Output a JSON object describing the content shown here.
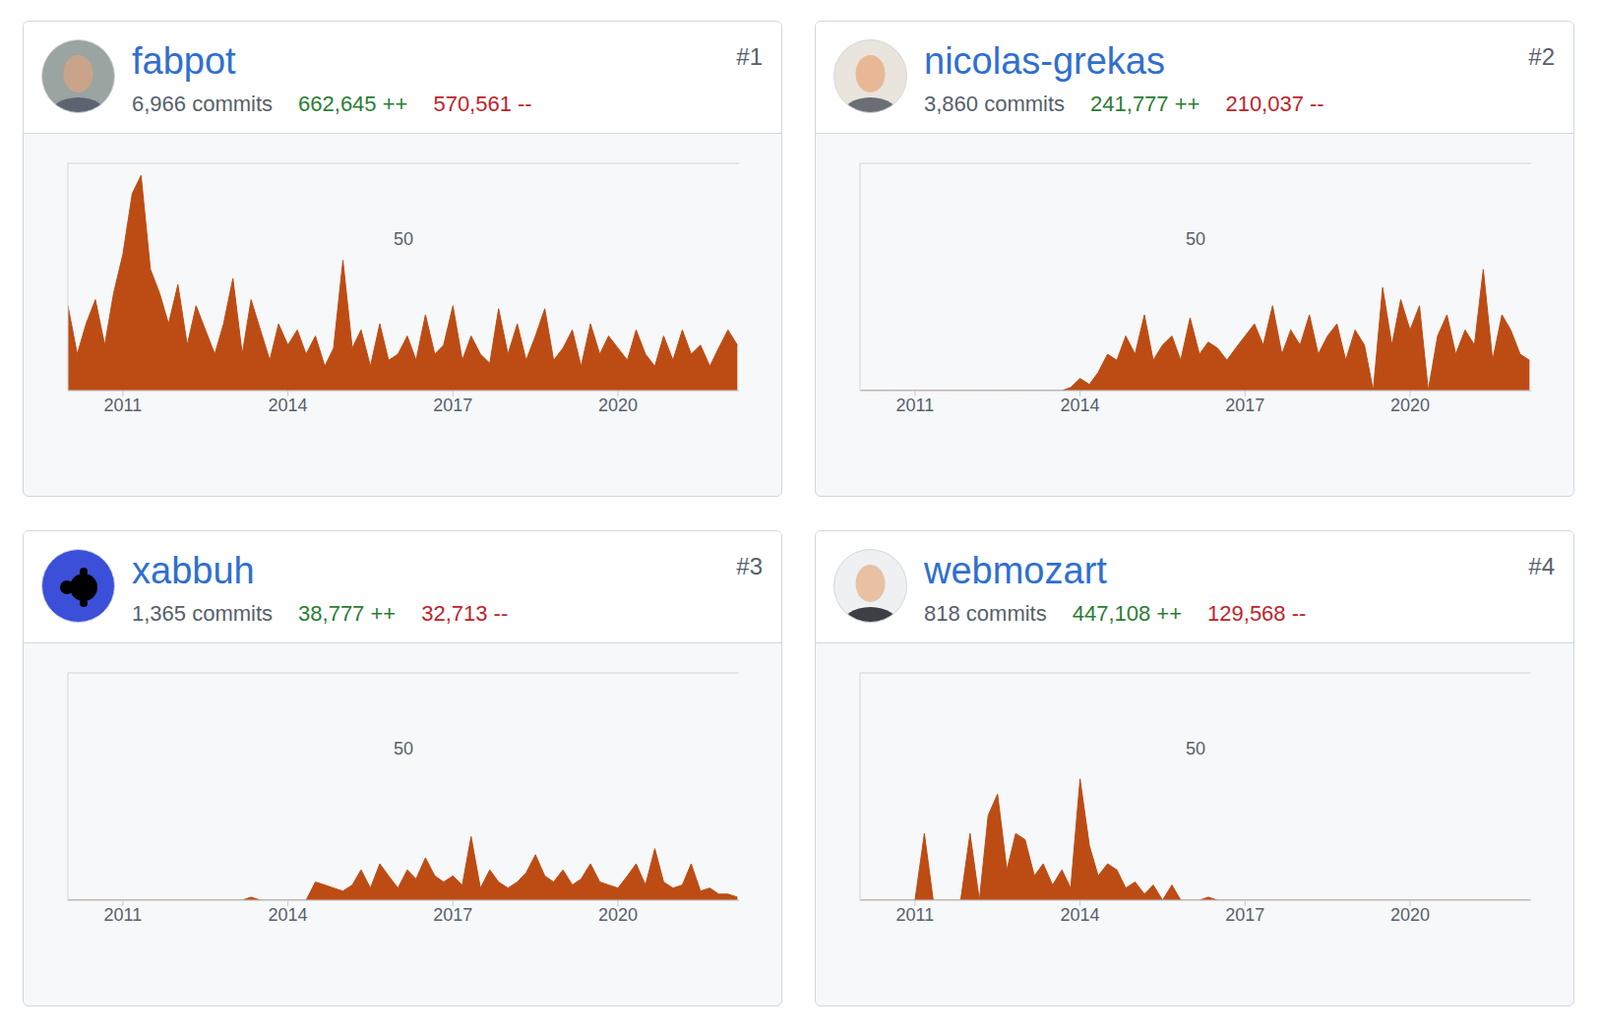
{
  "chart_data": [
    {
      "type": "area",
      "title": "fabpot",
      "rank": "#1",
      "commits": "6,966 commits",
      "additions": "662,645 ++",
      "deletions": "570,561 --",
      "color": "#bc4c14",
      "grid": true,
      "xlim": [
        2010,
        2022.2
      ],
      "xticks": [
        2011,
        2014,
        2017,
        2020
      ],
      "ylim": [
        0,
        75
      ],
      "yticks": [
        50
      ],
      "x": [
        2010,
        2010.17,
        2010.33,
        2010.5,
        2010.67,
        2010.83,
        2011,
        2011.17,
        2011.33,
        2011.5,
        2011.67,
        2011.83,
        2012,
        2012.17,
        2012.33,
        2012.5,
        2012.67,
        2012.83,
        2013,
        2013.17,
        2013.33,
        2013.5,
        2013.67,
        2013.83,
        2014,
        2014.17,
        2014.33,
        2014.5,
        2014.67,
        2014.83,
        2015,
        2015.17,
        2015.33,
        2015.5,
        2015.67,
        2015.83,
        2016,
        2016.17,
        2016.33,
        2016.5,
        2016.67,
        2016.83,
        2017,
        2017.17,
        2017.33,
        2017.5,
        2017.67,
        2017.83,
        2018,
        2018.17,
        2018.33,
        2018.5,
        2018.67,
        2018.83,
        2019,
        2019.17,
        2019.33,
        2019.5,
        2019.67,
        2019.83,
        2020,
        2020.17,
        2020.33,
        2020.5,
        2020.67,
        2020.83,
        2021,
        2021.17,
        2021.33,
        2021.5,
        2021.67,
        2021.83,
        2022,
        2022.17
      ],
      "values": [
        28,
        12,
        22,
        30,
        15,
        32,
        45,
        65,
        71,
        40,
        32,
        22,
        35,
        15,
        28,
        20,
        12,
        22,
        37,
        12,
        30,
        20,
        10,
        22,
        15,
        20,
        12,
        18,
        8,
        14,
        43,
        14,
        20,
        8,
        22,
        10,
        12,
        18,
        10,
        25,
        12,
        15,
        28,
        10,
        18,
        12,
        9,
        27,
        12,
        22,
        10,
        18,
        27,
        10,
        14,
        20,
        8,
        22,
        12,
        18,
        14,
        10,
        20,
        12,
        8,
        18,
        10,
        20,
        12,
        15,
        8,
        14,
        20,
        15
      ]
    },
    {
      "type": "area",
      "title": "nicolas-grekas",
      "rank": "#2",
      "commits": "3,860 commits",
      "additions": "241,777 ++",
      "deletions": "210,037 --",
      "color": "#bc4c14",
      "grid": true,
      "xlim": [
        2010,
        2022.2
      ],
      "xticks": [
        2011,
        2014,
        2017,
        2020
      ],
      "ylim": [
        0,
        75
      ],
      "yticks": [
        50
      ],
      "x": [
        2010,
        2010.17,
        2010.33,
        2010.5,
        2010.67,
        2010.83,
        2011,
        2011.17,
        2011.33,
        2011.5,
        2011.67,
        2011.83,
        2012,
        2012.17,
        2012.33,
        2012.5,
        2012.67,
        2012.83,
        2013,
        2013.17,
        2013.33,
        2013.5,
        2013.67,
        2013.83,
        2014,
        2014.17,
        2014.33,
        2014.5,
        2014.67,
        2014.83,
        2015,
        2015.17,
        2015.33,
        2015.5,
        2015.67,
        2015.83,
        2016,
        2016.17,
        2016.33,
        2016.5,
        2016.67,
        2016.83,
        2017,
        2017.17,
        2017.33,
        2017.5,
        2017.67,
        2017.83,
        2018,
        2018.17,
        2018.33,
        2018.5,
        2018.67,
        2018.83,
        2019,
        2019.17,
        2019.33,
        2019.5,
        2019.67,
        2019.83,
        2020,
        2020.17,
        2020.33,
        2020.5,
        2020.67,
        2020.83,
        2021,
        2021.17,
        2021.33,
        2021.5,
        2021.67,
        2021.83,
        2022,
        2022.17
      ],
      "values": [
        0,
        0,
        0,
        0,
        0,
        0,
        0,
        0,
        0,
        0,
        0,
        0,
        0,
        0,
        0,
        0,
        0,
        0,
        0,
        0,
        0,
        0,
        0,
        1,
        4,
        2,
        6,
        12,
        10,
        18,
        12,
        25,
        10,
        15,
        18,
        10,
        24,
        12,
        16,
        14,
        10,
        14,
        18,
        22,
        15,
        28,
        12,
        20,
        15,
        25,
        12,
        18,
        22,
        10,
        20,
        15,
        0,
        34,
        15,
        30,
        20,
        28,
        0,
        18,
        25,
        12,
        20,
        15,
        40,
        10,
        25,
        20,
        12,
        10
      ]
    },
    {
      "type": "area",
      "title": "xabbuh",
      "rank": "#3",
      "commits": "1,365 commits",
      "additions": "38,777 ++",
      "deletions": "32,713 --",
      "color": "#bc4c14",
      "grid": true,
      "xlim": [
        2010,
        2022.2
      ],
      "xticks": [
        2011,
        2014,
        2017,
        2020
      ],
      "ylim": [
        0,
        75
      ],
      "yticks": [
        50
      ],
      "x": [
        2010,
        2010.17,
        2010.33,
        2010.5,
        2010.67,
        2010.83,
        2011,
        2011.17,
        2011.33,
        2011.5,
        2011.67,
        2011.83,
        2012,
        2012.17,
        2012.33,
        2012.5,
        2012.67,
        2012.83,
        2013,
        2013.17,
        2013.33,
        2013.5,
        2013.67,
        2013.83,
        2014,
        2014.17,
        2014.33,
        2014.5,
        2014.67,
        2014.83,
        2015,
        2015.17,
        2015.33,
        2015.5,
        2015.67,
        2015.83,
        2016,
        2016.17,
        2016.33,
        2016.5,
        2016.67,
        2016.83,
        2017,
        2017.17,
        2017.33,
        2017.5,
        2017.67,
        2017.83,
        2018,
        2018.17,
        2018.33,
        2018.5,
        2018.67,
        2018.83,
        2019,
        2019.17,
        2019.33,
        2019.5,
        2019.67,
        2019.83,
        2020,
        2020.17,
        2020.33,
        2020.5,
        2020.67,
        2020.83,
        2021,
        2021.17,
        2021.33,
        2021.5,
        2021.67,
        2021.83,
        2022,
        2022.17
      ],
      "values": [
        0,
        0,
        0,
        0,
        0,
        0,
        0,
        0,
        0,
        0,
        0,
        0,
        0,
        0,
        0,
        0,
        0,
        0,
        0,
        0,
        1,
        0,
        0,
        0,
        0,
        0,
        0,
        6,
        5,
        4,
        3,
        5,
        10,
        4,
        12,
        8,
        4,
        10,
        7,
        14,
        8,
        6,
        8,
        5,
        21,
        4,
        10,
        6,
        4,
        6,
        9,
        15,
        8,
        6,
        10,
        5,
        7,
        12,
        6,
        5,
        4,
        8,
        12,
        5,
        17,
        6,
        4,
        5,
        12,
        3,
        4,
        2,
        2,
        1
      ]
    },
    {
      "type": "area",
      "title": "webmozart",
      "rank": "#4",
      "commits": "818 commits",
      "additions": "447,108 ++",
      "deletions": "129,568 --",
      "color": "#bc4c14",
      "grid": true,
      "xlim": [
        2010,
        2022.2
      ],
      "xticks": [
        2011,
        2014,
        2017,
        2020
      ],
      "ylim": [
        0,
        75
      ],
      "yticks": [
        50
      ],
      "x": [
        2010,
        2010.17,
        2010.33,
        2010.5,
        2010.67,
        2010.83,
        2011,
        2011.17,
        2011.33,
        2011.5,
        2011.67,
        2011.83,
        2012,
        2012.17,
        2012.33,
        2012.5,
        2012.67,
        2012.83,
        2013,
        2013.17,
        2013.33,
        2013.5,
        2013.67,
        2013.83,
        2014,
        2014.17,
        2014.33,
        2014.5,
        2014.67,
        2014.83,
        2015,
        2015.17,
        2015.33,
        2015.5,
        2015.67,
        2015.83,
        2016,
        2016.17,
        2016.33,
        2016.5,
        2016.67,
        2016.83,
        2017,
        2017.17,
        2017.33,
        2017.5,
        2017.67,
        2017.83,
        2018,
        2018.17,
        2018.33,
        2018.5,
        2018.67,
        2018.83,
        2019,
        2019.17,
        2019.33,
        2019.5,
        2019.67,
        2019.83,
        2020,
        2020.17,
        2020.33,
        2020.5,
        2020.67,
        2020.83,
        2021,
        2021.17,
        2021.33,
        2021.5,
        2021.67,
        2021.83,
        2022,
        2022.17
      ],
      "values": [
        0,
        0,
        0,
        0,
        0,
        0,
        0,
        22,
        0,
        0,
        0,
        0,
        22,
        0,
        28,
        35,
        10,
        22,
        20,
        8,
        12,
        5,
        10,
        4,
        40,
        18,
        8,
        12,
        10,
        4,
        6,
        2,
        5,
        0,
        5,
        0,
        0,
        0,
        1,
        0,
        0,
        0,
        0,
        0,
        0,
        0,
        0,
        0,
        0,
        0,
        0,
        0,
        0,
        0,
        0,
        0,
        0,
        0,
        0,
        0,
        0,
        0,
        0,
        0,
        0,
        0,
        0,
        0,
        0,
        0,
        0,
        0,
        0,
        0
      ]
    }
  ]
}
